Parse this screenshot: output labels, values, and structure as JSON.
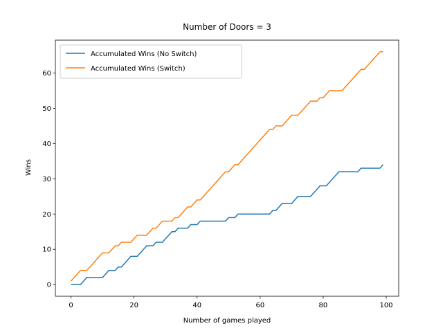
{
  "chart_data": {
    "type": "line",
    "title": "Number of Doors = 3",
    "xlabel": "Number of games played",
    "ylabel": "Wins",
    "x": [
      0,
      1,
      2,
      3,
      4,
      5,
      6,
      7,
      8,
      9,
      10,
      11,
      12,
      13,
      14,
      15,
      16,
      17,
      18,
      19,
      20,
      21,
      22,
      23,
      24,
      25,
      26,
      27,
      28,
      29,
      30,
      31,
      32,
      33,
      34,
      35,
      36,
      37,
      38,
      39,
      40,
      41,
      42,
      43,
      44,
      45,
      46,
      47,
      48,
      49,
      50,
      51,
      52,
      53,
      54,
      55,
      56,
      57,
      58,
      59,
      60,
      61,
      62,
      63,
      64,
      65,
      66,
      67,
      68,
      69,
      70,
      71,
      72,
      73,
      74,
      75,
      76,
      77,
      78,
      79,
      80,
      81,
      82,
      83,
      84,
      85,
      86,
      87,
      88,
      89,
      90,
      91,
      92,
      93,
      94,
      95,
      96,
      97,
      98,
      99
    ],
    "series": [
      {
        "name": "Accumulated Wins (No Switch)",
        "color": "#1f77b4",
        "values": [
          0,
          0,
          0,
          0,
          1,
          2,
          2,
          2,
          2,
          2,
          2,
          3,
          4,
          4,
          4,
          5,
          5,
          6,
          7,
          8,
          8,
          8,
          9,
          10,
          11,
          11,
          11,
          12,
          12,
          12,
          13,
          14,
          15,
          15,
          16,
          16,
          16,
          16,
          17,
          17,
          17,
          18,
          18,
          18,
          18,
          18,
          18,
          18,
          18,
          18,
          19,
          19,
          19,
          20,
          20,
          20,
          20,
          20,
          20,
          20,
          20,
          20,
          20,
          20,
          21,
          21,
          22,
          23,
          23,
          23,
          23,
          24,
          25,
          25,
          25,
          25,
          25,
          26,
          27,
          28,
          28,
          28,
          29,
          30,
          31,
          32,
          32,
          32,
          32,
          32,
          32,
          32,
          33,
          33,
          33,
          33,
          33,
          33,
          33,
          34
        ]
      },
      {
        "name": "Accumulated Wins (Switch)",
        "color": "#ff7f0e",
        "values": [
          1,
          2,
          3,
          4,
          4,
          4,
          5,
          6,
          7,
          8,
          9,
          9,
          9,
          10,
          11,
          11,
          12,
          12,
          12,
          12,
          13,
          14,
          14,
          14,
          14,
          15,
          16,
          16,
          17,
          18,
          18,
          18,
          18,
          19,
          19,
          20,
          21,
          22,
          22,
          23,
          24,
          24,
          25,
          26,
          27,
          28,
          29,
          30,
          31,
          32,
          32,
          33,
          34,
          34,
          35,
          36,
          37,
          38,
          39,
          40,
          41,
          42,
          43,
          44,
          44,
          45,
          45,
          45,
          46,
          47,
          48,
          48,
          48,
          49,
          50,
          51,
          52,
          52,
          52,
          53,
          53,
          54,
          55,
          55,
          55,
          55,
          55,
          56,
          57,
          58,
          59,
          60,
          61,
          61,
          62,
          63,
          64,
          65,
          66,
          66
        ]
      }
    ],
    "xlim": [
      -4.95,
      103.95
    ],
    "ylim": [
      -3.3,
      69.3
    ],
    "xticks": [
      0,
      20,
      40,
      60,
      80,
      100
    ],
    "yticks": [
      0,
      10,
      20,
      30,
      40,
      50,
      60
    ],
    "legend": "upper left"
  }
}
